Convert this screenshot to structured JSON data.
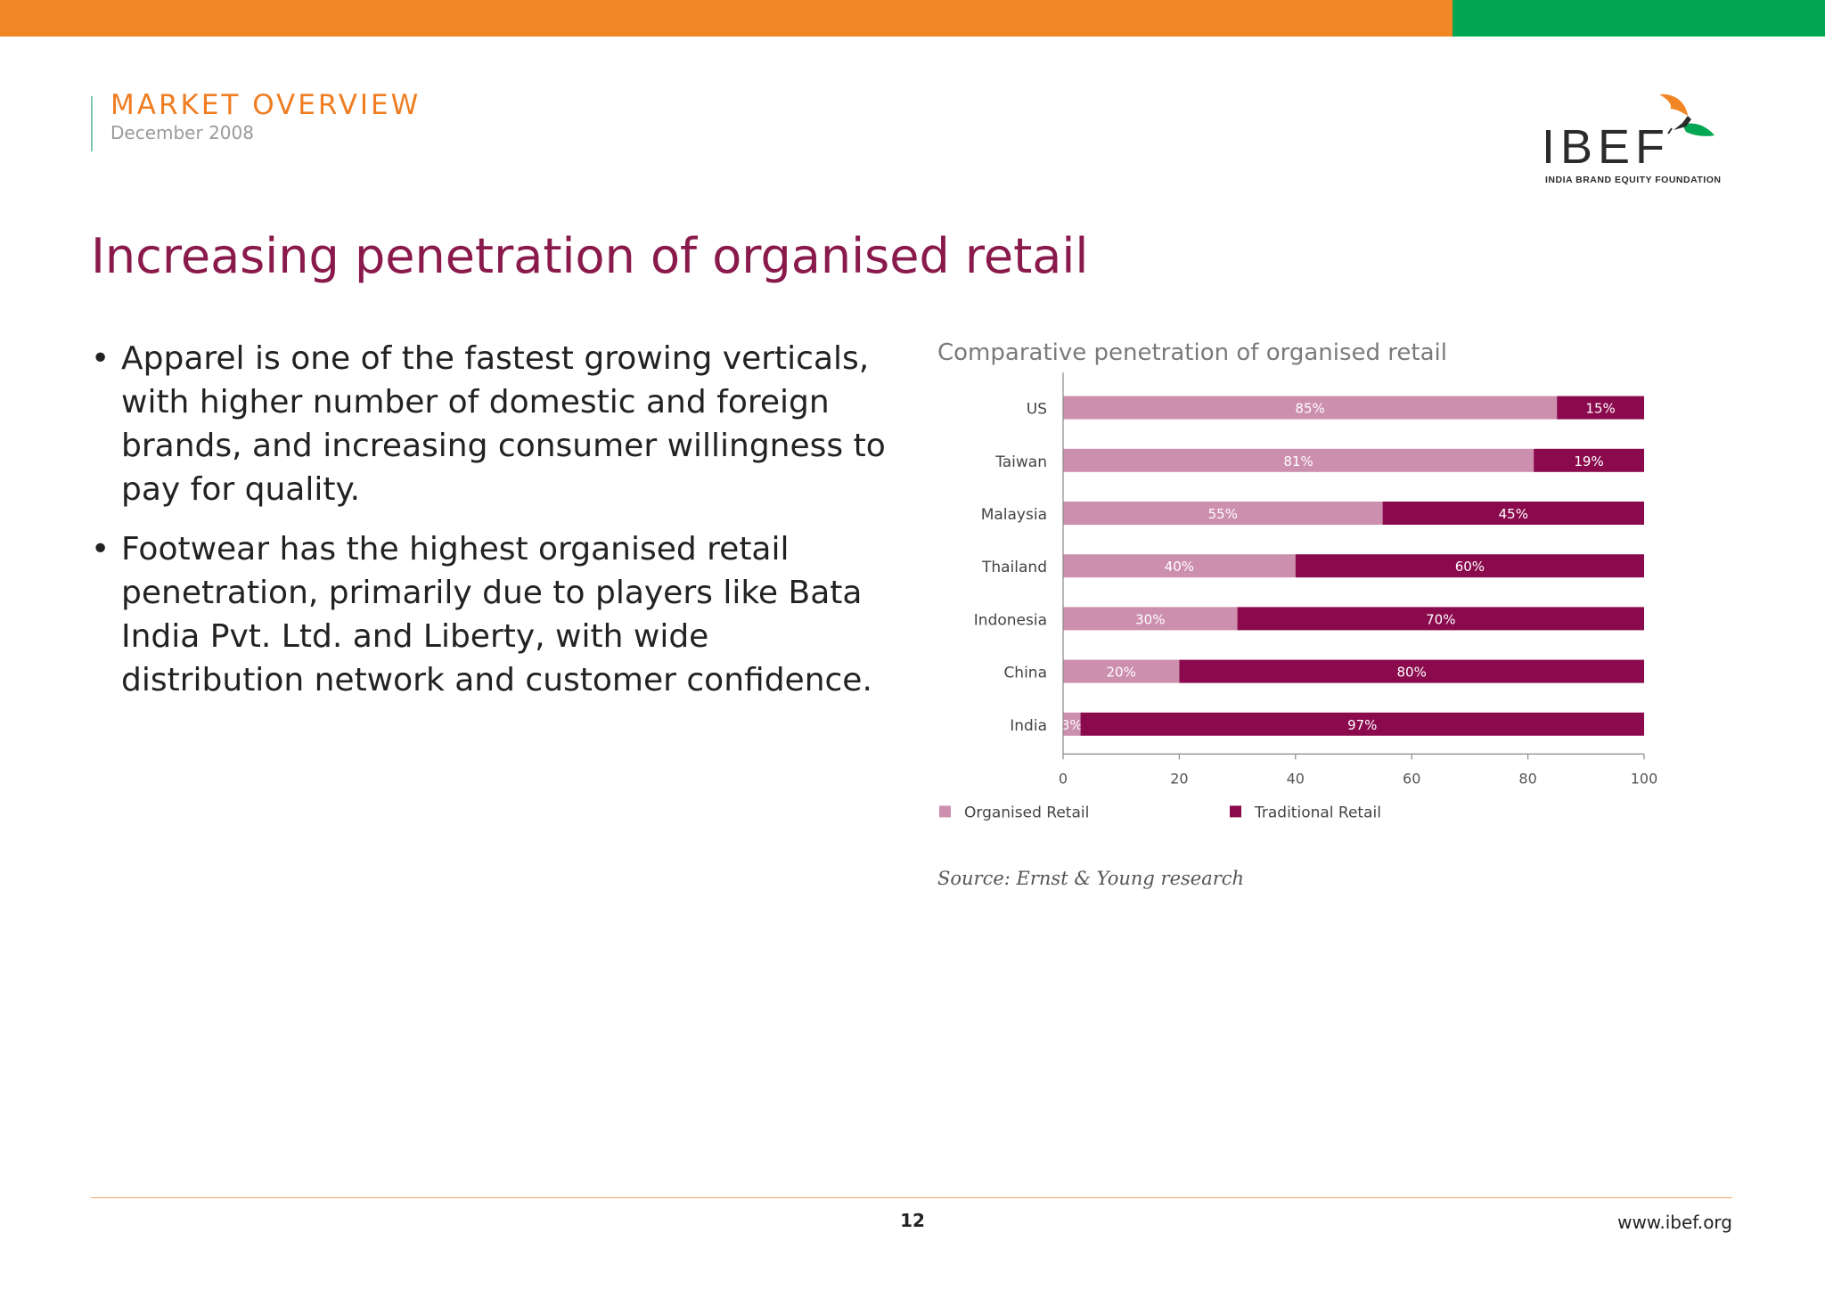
{
  "header": {
    "section": "MARKET OVERVIEW",
    "date": "December 2008"
  },
  "logo": {
    "name": "IBEF",
    "subtitle": "INDIA BRAND EQUITY FOUNDATION"
  },
  "page_title": "Increasing penetration of organised retail",
  "bullets": [
    {
      "text": "Apparel is one of the fastest growing verticals, with higher number of domestic and foreign brands, and increasing consumer willingness to pay for quality."
    },
    {
      "text": "Footwear has the highest organised retail penetration, primarily due to players like Bata India Pvt. Ltd. and Liberty, with wide distribution network and customer confidence."
    }
  ],
  "chart_data": {
    "type": "bar",
    "orientation": "horizontal",
    "stacked": true,
    "title": "Comparative penetration of organised retail",
    "categories": [
      "US",
      "Taiwan",
      "Malaysia",
      "Thailand",
      "Indonesia",
      "China",
      "India"
    ],
    "series": [
      {
        "name": "Organised Retail",
        "color": "#cc8fae",
        "values": [
          85,
          81,
          55,
          40,
          30,
          20,
          3
        ],
        "labels": [
          "85%",
          "81%",
          "55%",
          "40%",
          "30%",
          "20%",
          "3%"
        ]
      },
      {
        "name": "Traditional Retail",
        "color": "#8b0a4e",
        "values": [
          15,
          19,
          45,
          60,
          70,
          80,
          97
        ],
        "labels": [
          "15%",
          "19%",
          "45%",
          "60%",
          "70%",
          "80%",
          "97%"
        ]
      }
    ],
    "xlim": [
      0,
      100
    ],
    "xticks": [
      "0",
      "20",
      "40",
      "60",
      "80",
      "100"
    ],
    "legend_position": "bottom",
    "grid": false
  },
  "source": "Source: Ernst & Young research",
  "footer": {
    "page_number": "12",
    "website": "www.ibef.org"
  },
  "colors": {
    "orange": "#f28524",
    "green": "#00a651",
    "maroon": "#8a1a4c"
  }
}
